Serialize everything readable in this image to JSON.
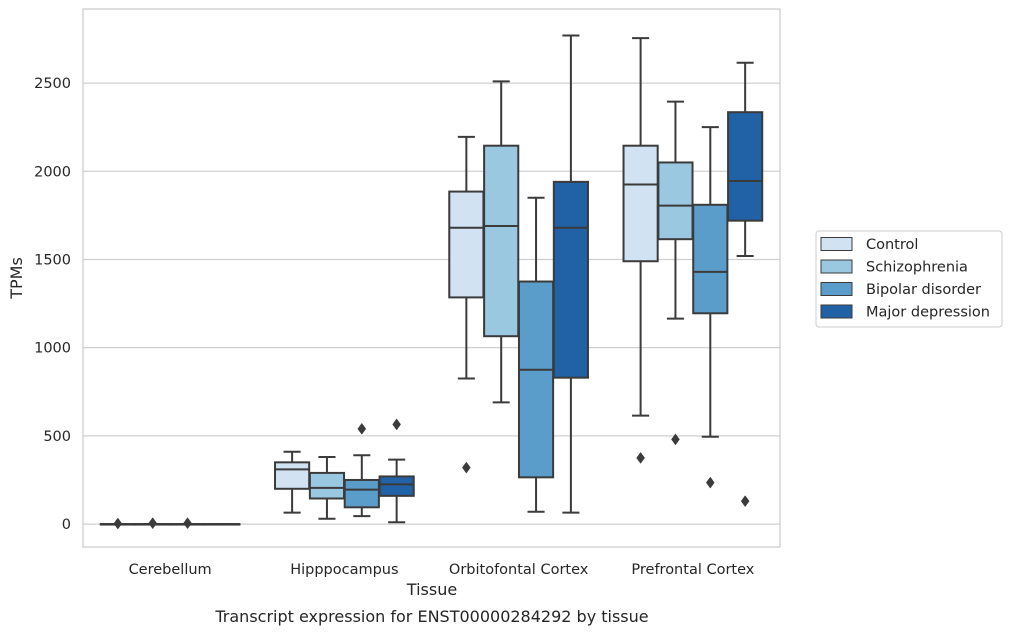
{
  "chart_data": {
    "type": "box",
    "caption": "Transcript expression for ENST00000284292 by tissue",
    "xlabel": "Tissue",
    "ylabel": "TPMs",
    "ylim": [
      -130,
      2920
    ],
    "yticks": [
      0,
      500,
      1000,
      1500,
      2000,
      2500
    ],
    "grid": true,
    "legend_position": "right",
    "categories": [
      "Cerebellum",
      "Hipppocampus",
      "Orbitofontal Cortex",
      "Prefrontal Cortex"
    ],
    "series": [
      {
        "name": "Control",
        "color": "#d1e2f2",
        "boxes": [
          {
            "category": "Cerebellum",
            "min": 0,
            "q1": 0,
            "median": 0,
            "q3": 0,
            "max": 0,
            "outliers": [
              3
            ]
          },
          {
            "category": "Hipppocampus",
            "min": 65,
            "q1": 200,
            "median": 310,
            "q3": 350,
            "max": 410,
            "outliers": []
          },
          {
            "category": "Orbitofontal Cortex",
            "min": 825,
            "q1": 1285,
            "median": 1680,
            "q3": 1885,
            "max": 2195,
            "outliers": [
              320
            ]
          },
          {
            "category": "Prefrontal Cortex",
            "min": 615,
            "q1": 1490,
            "median": 1925,
            "q3": 2145,
            "max": 2755,
            "outliers": [
              375
            ]
          }
        ]
      },
      {
        "name": "Schizophrenia",
        "color": "#9ac8e0",
        "boxes": [
          {
            "category": "Cerebellum",
            "min": 0,
            "q1": 0,
            "median": 0,
            "q3": 0,
            "max": 0,
            "outliers": [
              5
            ]
          },
          {
            "category": "Hipppocampus",
            "min": 30,
            "q1": 145,
            "median": 205,
            "q3": 290,
            "max": 380,
            "outliers": []
          },
          {
            "category": "Orbitofontal Cortex",
            "min": 690,
            "q1": 1065,
            "median": 1690,
            "q3": 2145,
            "max": 2510,
            "outliers": []
          },
          {
            "category": "Prefrontal Cortex",
            "min": 1165,
            "q1": 1615,
            "median": 1805,
            "q3": 2050,
            "max": 2395,
            "outliers": [
              480
            ]
          }
        ]
      },
      {
        "name": "Bipolar disorder",
        "color": "#5a9dca",
        "boxes": [
          {
            "category": "Cerebellum",
            "min": 0,
            "q1": 0,
            "median": 0,
            "q3": 0,
            "max": 0,
            "outliers": [
              5
            ]
          },
          {
            "category": "Hipppocampus",
            "min": 45,
            "q1": 95,
            "median": 195,
            "q3": 250,
            "max": 390,
            "outliers": [
              540
            ]
          },
          {
            "category": "Orbitofontal Cortex",
            "min": 70,
            "q1": 265,
            "median": 875,
            "q3": 1375,
            "max": 1850,
            "outliers": []
          },
          {
            "category": "Prefrontal Cortex",
            "min": 495,
            "q1": 1195,
            "median": 1430,
            "q3": 1810,
            "max": 2250,
            "outliers": [
              235
            ]
          }
        ]
      },
      {
        "name": "Major depression",
        "color": "#2161a6",
        "boxes": [
          {
            "category": "Cerebellum",
            "min": 0,
            "q1": 0,
            "median": 0,
            "q3": 0,
            "max": 0,
            "outliers": []
          },
          {
            "category": "Hipppocampus",
            "min": 10,
            "q1": 160,
            "median": 225,
            "q3": 270,
            "max": 365,
            "outliers": [
              565
            ]
          },
          {
            "category": "Orbitofontal Cortex",
            "min": 65,
            "q1": 830,
            "median": 1680,
            "q3": 1940,
            "max": 2770,
            "outliers": []
          },
          {
            "category": "Prefrontal Cortex",
            "min": 1520,
            "q1": 1720,
            "median": 1945,
            "q3": 2335,
            "max": 2615,
            "outliers": [
              130
            ]
          }
        ]
      }
    ]
  }
}
